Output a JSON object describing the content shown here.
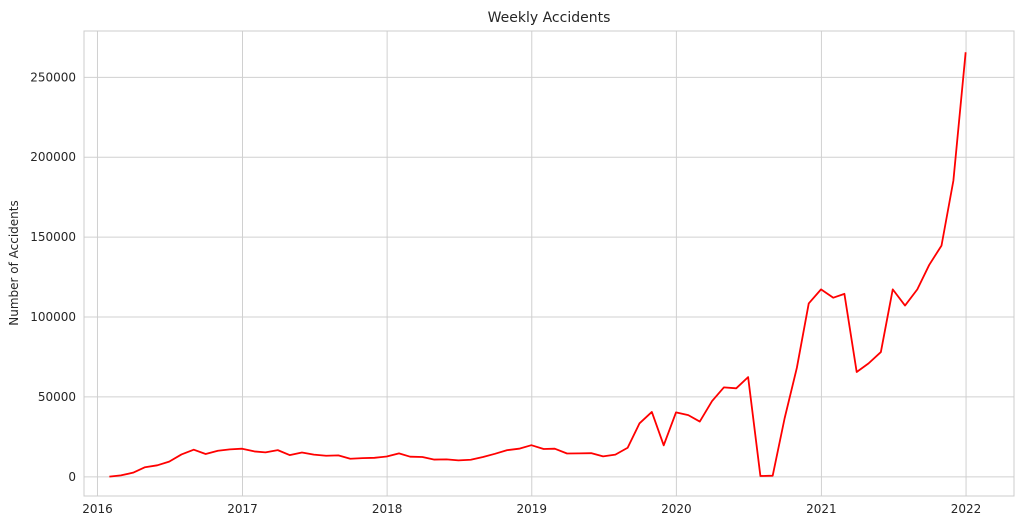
{
  "chart_data": {
    "type": "line",
    "title": "Weekly Accidents",
    "xlabel": "",
    "ylabel": "Number of Accidents",
    "grid": true,
    "xlim": [
      "2015-11-28",
      "2022-05-02"
    ],
    "ylim": [
      -12000,
      279000
    ],
    "x_ticks": [
      "2016",
      "2017",
      "2018",
      "2019",
      "2020",
      "2021",
      "2022"
    ],
    "y_ticks": [
      "0",
      "50000",
      "100000",
      "150000",
      "200000",
      "250000"
    ],
    "colors": {
      "line": "#ff0000",
      "grid": "#d0d0d0",
      "axis": "#cccccc",
      "text": "#262626"
    },
    "series": [
      {
        "x": [
          "2016-01-31",
          "2016-02-29",
          "2016-03-31",
          "2016-04-30",
          "2016-05-31",
          "2016-06-30",
          "2016-07-31",
          "2016-08-31",
          "2016-09-30",
          "2016-10-31",
          "2016-11-30",
          "2016-12-31",
          "2017-01-31",
          "2017-02-28",
          "2017-03-31",
          "2017-04-30",
          "2017-05-31",
          "2017-06-30",
          "2017-07-31",
          "2017-08-31",
          "2017-09-30",
          "2017-10-31",
          "2017-11-30",
          "2017-12-31",
          "2018-01-31",
          "2018-02-28",
          "2018-03-31",
          "2018-04-30",
          "2018-05-31",
          "2018-06-30",
          "2018-07-31",
          "2018-08-31",
          "2018-09-30",
          "2018-10-31",
          "2018-11-30",
          "2018-12-31",
          "2019-01-31",
          "2019-02-28",
          "2019-03-31",
          "2019-04-30",
          "2019-05-31",
          "2019-06-30",
          "2019-07-31",
          "2019-08-31",
          "2019-09-30",
          "2019-10-31",
          "2019-11-30",
          "2019-12-31",
          "2020-01-31",
          "2020-02-29",
          "2020-03-31",
          "2020-04-30",
          "2020-05-31",
          "2020-06-30",
          "2020-07-31",
          "2020-08-31",
          "2020-09-30",
          "2020-10-31",
          "2020-11-30",
          "2020-12-31",
          "2021-01-31",
          "2021-02-28",
          "2021-03-31",
          "2021-04-30",
          "2021-05-31",
          "2021-06-30",
          "2021-07-31",
          "2021-08-31",
          "2021-09-30",
          "2021-10-31",
          "2021-11-30",
          "2021-12-31"
        ],
        "values": [
          100,
          900,
          2600,
          6000,
          7200,
          9500,
          14000,
          17000,
          14300,
          16300,
          17200,
          17600,
          15900,
          15300,
          16700,
          13600,
          15200,
          13900,
          13200,
          13400,
          11300,
          11700,
          11900,
          12700,
          14700,
          12600,
          12400,
          10800,
          10900,
          10300,
          10700,
          12400,
          14400,
          16700,
          17600,
          19800,
          17400,
          17600,
          14600,
          14700,
          14800,
          12800,
          13900,
          18200,
          33500,
          40600,
          19700,
          40300,
          38600,
          34600,
          47400,
          56000,
          55400,
          62400,
          500,
          700,
          36500,
          68200,
          108500,
          117300,
          112100,
          114500,
          65600,
          71000,
          78100,
          117300,
          107200,
          117300,
          132600,
          144700,
          185300,
          265700
        ]
      }
    ]
  }
}
